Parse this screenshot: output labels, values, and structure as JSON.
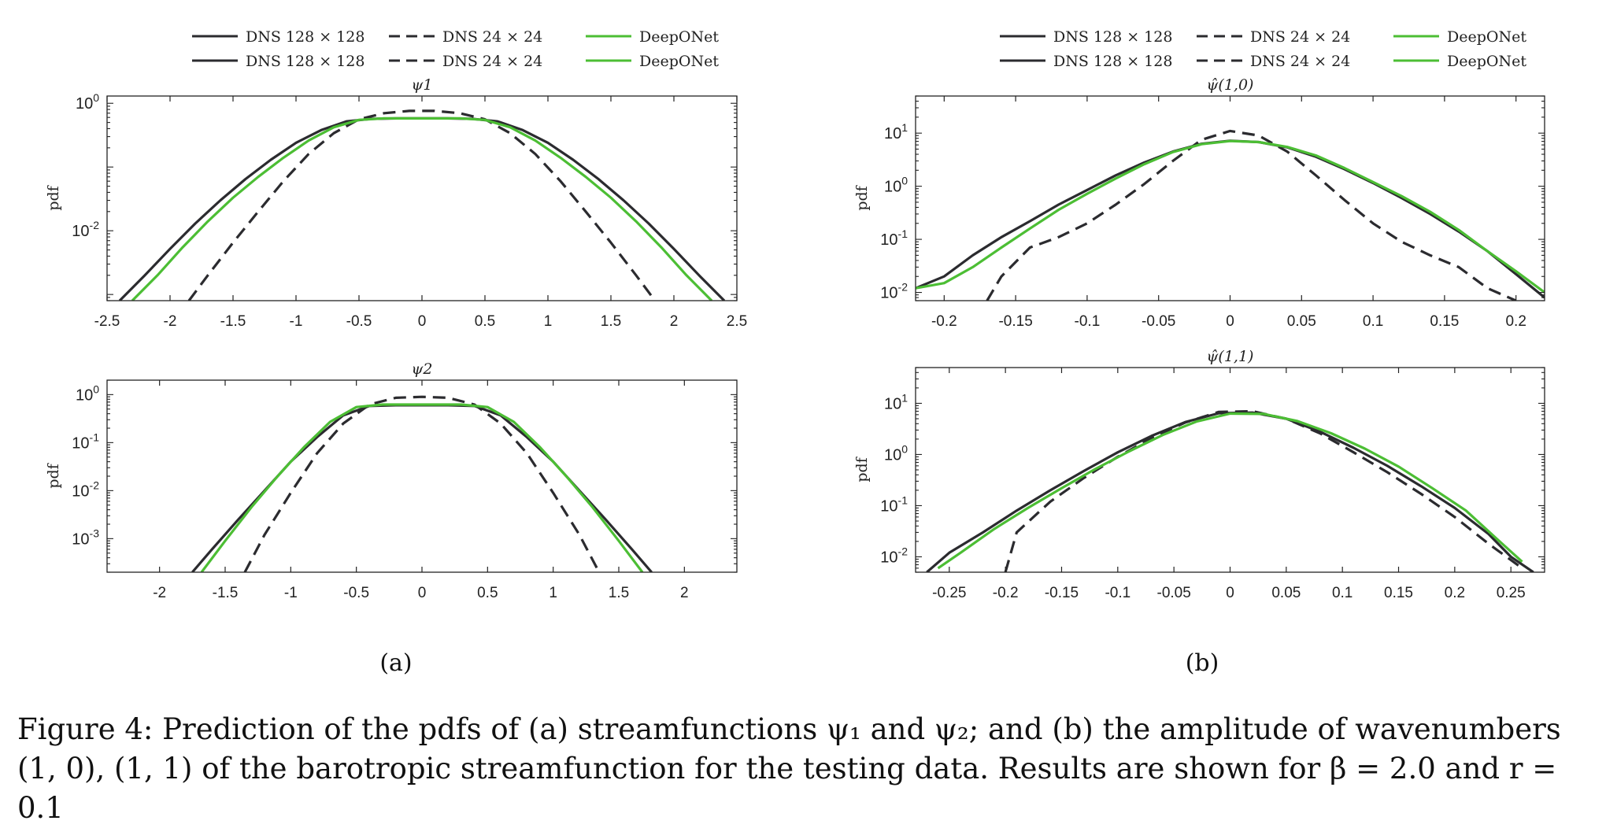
{
  "colors": {
    "dns_fine": "#2b2b2f",
    "dns_coarse": "#2b2b2f",
    "deeponet": "#4cbe34"
  },
  "panel_labels": [
    "(a)",
    "(b)"
  ],
  "caption": {
    "line1": "Figure 4: Prediction of the pdfs of (a) streamfunctions ψ₁ and ψ₂; and (b) the amplitude of wavenumbers",
    "line2": "(1, 0), (1, 1) of the barotropic streamfunction for the testing data. Results are shown for β = 2.0 and r = 0.1"
  },
  "legend_entries": [
    {
      "label": "DNS 128 × 128",
      "style": "solid",
      "color": "#2b2b2f"
    },
    {
      "label": "DNS 24 × 24",
      "style": "dashed",
      "color": "#2b2b2f"
    },
    {
      "label": "DeepONet",
      "style": "solid",
      "color": "#4cbe34"
    }
  ],
  "chart_data": [
    {
      "type": "line",
      "id": "psi1",
      "title": "ψ1",
      "ylabel": "pdf",
      "yscale": "log",
      "xlim": [
        -2.5,
        2.5
      ],
      "ylim": [
        0.0008,
        1.3
      ],
      "xticks": [
        -2.5,
        -2,
        -1.5,
        -1,
        -0.5,
        0,
        0.5,
        1,
        1.5,
        2,
        2.5
      ],
      "xtick_labels": [
        "-2.5",
        "-2",
        "-1.5",
        "-1",
        "-0.5",
        "0",
        "0.5",
        "1",
        "1.5",
        "2",
        "2.5"
      ],
      "yticks": [
        {
          "v": 1,
          "base": "10",
          "exp": "0"
        },
        {
          "v": 0.01,
          "base": "10",
          "exp": "-2"
        }
      ],
      "series": [
        {
          "name": "DNS 128 × 128",
          "style": "solid",
          "color": "#2b2b2f",
          "x": [
            -2.4,
            -2.2,
            -2.0,
            -1.8,
            -1.6,
            -1.4,
            -1.2,
            -1.0,
            -0.8,
            -0.6,
            -0.4,
            -0.2,
            0,
            0.2,
            0.4,
            0.6,
            0.8,
            1.0,
            1.2,
            1.4,
            1.6,
            1.8,
            2.0,
            2.2,
            2.4
          ],
          "y": [
            0.0008,
            0.002,
            0.0052,
            0.013,
            0.03,
            0.065,
            0.13,
            0.24,
            0.38,
            0.52,
            0.57,
            0.58,
            0.58,
            0.58,
            0.57,
            0.52,
            0.38,
            0.24,
            0.13,
            0.065,
            0.03,
            0.013,
            0.0052,
            0.002,
            0.0008
          ]
        },
        {
          "name": "DNS 24 × 24",
          "style": "dashed",
          "color": "#2b2b2f",
          "x": [
            -1.85,
            -1.7,
            -1.5,
            -1.3,
            -1.1,
            -0.9,
            -0.7,
            -0.5,
            -0.3,
            -0.1,
            0.1,
            0.3,
            0.5,
            0.7,
            0.9,
            1.1,
            1.3,
            1.5,
            1.7,
            1.85
          ],
          "y": [
            0.0008,
            0.002,
            0.0065,
            0.02,
            0.06,
            0.16,
            0.34,
            0.56,
            0.7,
            0.76,
            0.76,
            0.7,
            0.56,
            0.34,
            0.16,
            0.06,
            0.02,
            0.0065,
            0.002,
            0.0008
          ]
        },
        {
          "name": "DeepONet",
          "style": "solid",
          "color": "#4cbe34",
          "x": [
            -2.3,
            -2.1,
            -1.9,
            -1.7,
            -1.5,
            -1.3,
            -1.1,
            -0.9,
            -0.7,
            -0.5,
            -0.3,
            -0.1,
            0.1,
            0.3,
            0.5,
            0.7,
            0.9,
            1.1,
            1.3,
            1.5,
            1.7,
            1.9,
            2.1,
            2.3
          ],
          "y": [
            0.0008,
            0.002,
            0.0055,
            0.014,
            0.033,
            0.07,
            0.14,
            0.26,
            0.42,
            0.55,
            0.58,
            0.58,
            0.58,
            0.58,
            0.55,
            0.42,
            0.26,
            0.14,
            0.07,
            0.033,
            0.014,
            0.0055,
            0.002,
            0.0008
          ]
        }
      ]
    },
    {
      "type": "line",
      "id": "psi2",
      "title": "ψ2",
      "ylabel": "pdf",
      "yscale": "log",
      "xlim": [
        -2.4,
        2.4
      ],
      "ylim": [
        0.0002,
        2
      ],
      "xticks": [
        -2,
        -1.5,
        -1,
        -0.5,
        0,
        0.5,
        1,
        1.5,
        2
      ],
      "xtick_labels": [
        "-2",
        "-1.5",
        "-1",
        "-0.5",
        "0",
        "0.5",
        "1",
        "1.5",
        "2"
      ],
      "yticks": [
        {
          "v": 1,
          "base": "10",
          "exp": "0"
        },
        {
          "v": 0.1,
          "base": "10",
          "exp": "-1"
        },
        {
          "v": 0.01,
          "base": "10",
          "exp": "-2"
        },
        {
          "v": 0.001,
          "base": "10",
          "exp": "-3"
        }
      ],
      "series": [
        {
          "name": "DNS 128 × 128",
          "style": "solid",
          "color": "#2b2b2f",
          "x": [
            -1.75,
            -1.6,
            -1.4,
            -1.2,
            -1.0,
            -0.8,
            -0.6,
            -0.4,
            -0.2,
            0,
            0.2,
            0.4,
            0.6,
            0.8,
            1.0,
            1.2,
            1.4,
            1.6,
            1.75
          ],
          "y": [
            0.0002,
            0.0006,
            0.0025,
            0.01,
            0.04,
            0.13,
            0.37,
            0.58,
            0.6,
            0.6,
            0.6,
            0.58,
            0.37,
            0.13,
            0.04,
            0.01,
            0.0025,
            0.0006,
            0.0002
          ]
        },
        {
          "name": "DNS 24 × 24",
          "style": "dashed",
          "color": "#2b2b2f",
          "x": [
            -1.35,
            -1.2,
            -1.0,
            -0.8,
            -0.6,
            -0.4,
            -0.2,
            0,
            0.2,
            0.4,
            0.6,
            0.8,
            1.0,
            1.2,
            1.35
          ],
          "y": [
            0.0002,
            0.0012,
            0.009,
            0.06,
            0.25,
            0.62,
            0.86,
            0.9,
            0.86,
            0.62,
            0.25,
            0.06,
            0.009,
            0.0012,
            0.0002
          ]
        },
        {
          "name": "DeepONet",
          "style": "solid",
          "color": "#4cbe34",
          "x": [
            -1.68,
            -1.5,
            -1.3,
            -1.1,
            -0.9,
            -0.7,
            -0.5,
            -0.3,
            -0.1,
            0.1,
            0.3,
            0.5,
            0.7,
            0.9,
            1.1,
            1.3,
            1.5,
            1.68
          ],
          "y": [
            0.0002,
            0.0009,
            0.0045,
            0.02,
            0.08,
            0.27,
            0.55,
            0.62,
            0.62,
            0.62,
            0.62,
            0.55,
            0.27,
            0.08,
            0.02,
            0.0045,
            0.0009,
            0.0002
          ]
        }
      ]
    },
    {
      "type": "line",
      "id": "psihat10",
      "title": "ψ̂(1,0)",
      "ylabel": "pdf",
      "yscale": "log",
      "xlim": [
        -0.22,
        0.22
      ],
      "ylim": [
        0.007,
        50
      ],
      "xticks": [
        -0.2,
        -0.15,
        -0.1,
        -0.05,
        0,
        0.05,
        0.1,
        0.15,
        0.2
      ],
      "xtick_labels": [
        "-0.2",
        "-0.15",
        "-0.1",
        "-0.05",
        "0",
        "0.05",
        "0.1",
        "0.15",
        "0.2"
      ],
      "yticks": [
        {
          "v": 10,
          "base": "10",
          "exp": "1"
        },
        {
          "v": 1,
          "base": "10",
          "exp": "0"
        },
        {
          "v": 0.1,
          "base": "10",
          "exp": "-1"
        },
        {
          "v": 0.01,
          "base": "10",
          "exp": "-2"
        }
      ],
      "series": [
        {
          "name": "DNS 128 × 128",
          "style": "solid",
          "color": "#2b2b2f",
          "x": [
            -0.22,
            -0.2,
            -0.18,
            -0.16,
            -0.14,
            -0.12,
            -0.1,
            -0.08,
            -0.06,
            -0.04,
            -0.02,
            0,
            0.02,
            0.04,
            0.06,
            0.08,
            0.1,
            0.12,
            0.14,
            0.16,
            0.18,
            0.2,
            0.22
          ],
          "y": [
            0.012,
            0.02,
            0.05,
            0.11,
            0.22,
            0.45,
            0.85,
            1.6,
            2.8,
            4.5,
            6.3,
            7.2,
            6.8,
            5.4,
            3.6,
            2.1,
            1.15,
            0.6,
            0.3,
            0.14,
            0.06,
            0.022,
            0.008
          ]
        },
        {
          "name": "DNS 24 × 24",
          "style": "dashed",
          "color": "#2b2b2f",
          "x": [
            -0.17,
            -0.16,
            -0.14,
            -0.12,
            -0.1,
            -0.08,
            -0.06,
            -0.04,
            -0.02,
            0,
            0.02,
            0.04,
            0.06,
            0.08,
            0.1,
            0.12,
            0.14,
            0.16,
            0.18,
            0.2
          ],
          "y": [
            0.007,
            0.02,
            0.07,
            0.11,
            0.2,
            0.45,
            1.1,
            3.0,
            7.5,
            11,
            9.0,
            4.5,
            1.6,
            0.55,
            0.2,
            0.09,
            0.05,
            0.03,
            0.012,
            0.007
          ]
        },
        {
          "name": "DeepONet",
          "style": "solid",
          "color": "#4cbe34",
          "x": [
            -0.22,
            -0.2,
            -0.18,
            -0.16,
            -0.14,
            -0.12,
            -0.1,
            -0.08,
            -0.06,
            -0.04,
            -0.02,
            0,
            0.02,
            0.04,
            0.06,
            0.08,
            0.1,
            0.12,
            0.14,
            0.16,
            0.18,
            0.2,
            0.22
          ],
          "y": [
            0.012,
            0.015,
            0.03,
            0.07,
            0.16,
            0.36,
            0.72,
            1.4,
            2.6,
            4.4,
            6.2,
            7.1,
            6.8,
            5.5,
            3.8,
            2.2,
            1.2,
            0.65,
            0.33,
            0.15,
            0.06,
            0.025,
            0.01
          ]
        }
      ]
    },
    {
      "type": "line",
      "id": "psihat11",
      "title": "ψ̂(1,1)",
      "ylabel": "pdf",
      "yscale": "log",
      "xlim": [
        -0.28,
        0.28
      ],
      "ylim": [
        0.005,
        50
      ],
      "xticks": [
        -0.25,
        -0.2,
        -0.15,
        -0.1,
        -0.05,
        0,
        0.05,
        0.1,
        0.15,
        0.2,
        0.25
      ],
      "xtick_labels": [
        "-0.25",
        "-0.2",
        "-0.15",
        "-0.1",
        "-0.05",
        "0",
        "0.05",
        "0.1",
        "0.15",
        "0.2",
        "0.25"
      ],
      "yticks": [
        {
          "v": 10,
          "base": "10",
          "exp": "1"
        },
        {
          "v": 1,
          "base": "10",
          "exp": "0"
        },
        {
          "v": 0.1,
          "base": "10",
          "exp": "-1"
        },
        {
          "v": 0.01,
          "base": "10",
          "exp": "-2"
        }
      ],
      "series": [
        {
          "name": "DNS 128 × 128",
          "style": "solid",
          "color": "#2b2b2f",
          "x": [
            -0.27,
            -0.25,
            -0.22,
            -0.19,
            -0.16,
            -0.13,
            -0.1,
            -0.07,
            -0.04,
            -0.01,
            0.02,
            0.05,
            0.08,
            0.11,
            0.14,
            0.17,
            0.2,
            0.23,
            0.25,
            0.27
          ],
          "y": [
            0.005,
            0.012,
            0.03,
            0.08,
            0.2,
            0.48,
            1.1,
            2.3,
            4.3,
            6.4,
            6.6,
            5.0,
            2.8,
            1.35,
            0.6,
            0.24,
            0.09,
            0.028,
            0.01,
            0.005
          ]
        },
        {
          "name": "DNS 24 × 24",
          "style": "dashed",
          "color": "#2b2b2f",
          "x": [
            -0.2,
            -0.19,
            -0.16,
            -0.13,
            -0.1,
            -0.07,
            -0.04,
            -0.01,
            0.02,
            0.05,
            0.08,
            0.11,
            0.14,
            0.17,
            0.2,
            0.23,
            0.26
          ],
          "y": [
            0.005,
            0.03,
            0.12,
            0.35,
            0.9,
            2.1,
            4.2,
            6.8,
            7.0,
            5.0,
            2.6,
            1.1,
            0.45,
            0.17,
            0.06,
            0.018,
            0.006
          ]
        },
        {
          "name": "DeepONet",
          "style": "solid",
          "color": "#4cbe34",
          "x": [
            -0.26,
            -0.24,
            -0.21,
            -0.18,
            -0.15,
            -0.12,
            -0.09,
            -0.06,
            -0.03,
            0,
            0.03,
            0.06,
            0.09,
            0.12,
            0.15,
            0.18,
            0.21,
            0.24,
            0.26
          ],
          "y": [
            0.006,
            0.012,
            0.035,
            0.09,
            0.22,
            0.52,
            1.15,
            2.4,
            4.4,
            6.3,
            6.2,
            4.5,
            2.6,
            1.3,
            0.58,
            0.22,
            0.08,
            0.02,
            0.008
          ]
        }
      ]
    }
  ]
}
